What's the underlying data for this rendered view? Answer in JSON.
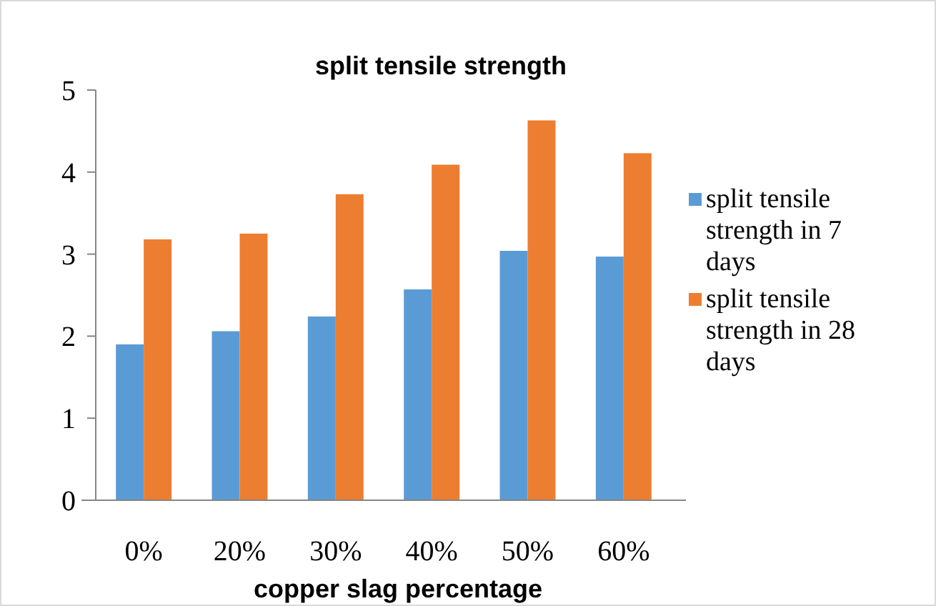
{
  "chart_data": {
    "type": "bar",
    "title": "split tensile strength",
    "xlabel": "copper slag percentage",
    "categories": [
      "0%",
      "20%",
      "30%",
      "40%",
      "50%",
      "60%"
    ],
    "series": [
      {
        "name": "split tensile strength  in 7 days",
        "color": "#5b9bd5",
        "values": [
          1.9,
          2.06,
          2.24,
          2.57,
          3.04,
          2.97
        ]
      },
      {
        "name": "split tensile strength  in 28 days",
        "color": "#ed7d31",
        "values": [
          3.18,
          3.25,
          3.73,
          4.09,
          4.63,
          4.23
        ]
      }
    ],
    "ylim": [
      0,
      5
    ],
    "yticks": [
      0,
      1,
      2,
      3,
      4,
      5
    ],
    "grid": false,
    "legend": "right"
  }
}
